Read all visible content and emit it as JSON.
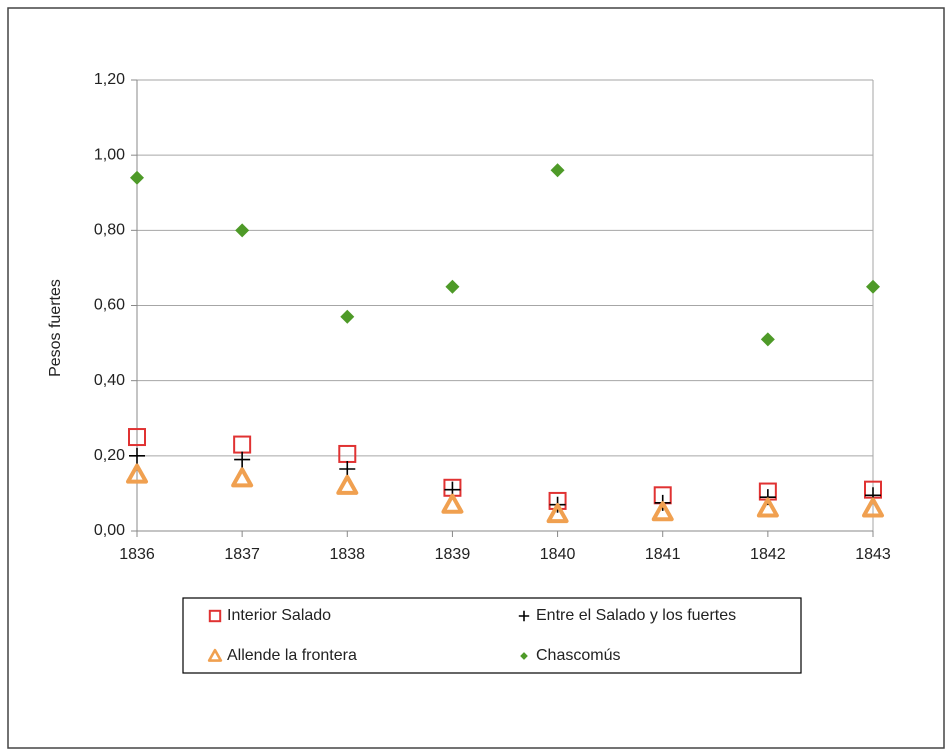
{
  "chart_data": {
    "type": "scatter",
    "y_label": "Pesos fuertes",
    "x": [
      1836,
      1837,
      1838,
      1839,
      1840,
      1841,
      1842,
      1843
    ],
    "xlim": [
      1836,
      1843
    ],
    "xticks": [
      1836,
      1837,
      1838,
      1839,
      1840,
      1841,
      1842,
      1843
    ],
    "ylim": [
      0,
      1.2
    ],
    "yticks": [
      {
        "value": 0,
        "label": "0,00"
      },
      {
        "value": 0.2,
        "label": "0,20"
      },
      {
        "value": 0.4,
        "label": "0,40"
      },
      {
        "value": 0.6,
        "label": "0,60"
      },
      {
        "value": 0.8,
        "label": "0,80"
      },
      {
        "value": 1.0,
        "label": "1,00"
      },
      {
        "value": 1.2,
        "label": "1,20"
      }
    ],
    "grid": true,
    "legend": "bottom",
    "series": [
      {
        "name": "Interior Salado",
        "color": "#e03232",
        "marker": "square",
        "values": [
          0.25,
          0.23,
          0.205,
          0.115,
          0.08,
          0.095,
          0.105,
          0.11
        ]
      },
      {
        "name": "Entre el Salado y los fuertes",
        "color": "#000000",
        "marker": "plus",
        "values": [
          0.2,
          0.19,
          0.165,
          0.11,
          0.07,
          0.075,
          0.09,
          0.095
        ]
      },
      {
        "name": "Allende la frontera",
        "color": "#f0a050",
        "marker": "triangle",
        "values": [
          0.15,
          0.14,
          0.12,
          0.07,
          0.045,
          0.05,
          0.06,
          0.06
        ]
      },
      {
        "name": "Chascomús",
        "color": "#4e9a28",
        "marker": "diamond",
        "values": [
          0.94,
          0.8,
          0.57,
          0.65,
          0.96,
          null,
          0.51,
          0.65
        ]
      }
    ]
  }
}
